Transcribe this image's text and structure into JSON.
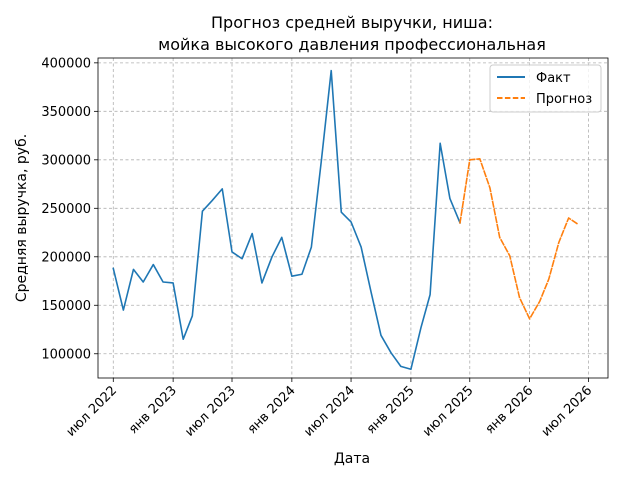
{
  "chart_data": {
    "type": "line",
    "title_line1": "Прогноз средней выручки, ниша:",
    "title_line2": "мойка высокого давления профессиональная",
    "xlabel": "Дата",
    "ylabel": "Средняя выручка, руб.",
    "grid": true,
    "legend_placement": "top-right",
    "xlim": [
      "2022-05-15",
      "2026-08-30"
    ],
    "ylim": [
      75000,
      405000
    ],
    "yticks": [
      100000,
      150000,
      200000,
      250000,
      300000,
      350000,
      400000
    ],
    "xticks": [
      {
        "date": "2022-07-01",
        "label": "июл 2022"
      },
      {
        "date": "2023-01-01",
        "label": "янв 2023"
      },
      {
        "date": "2023-07-01",
        "label": "июл 2023"
      },
      {
        "date": "2024-01-01",
        "label": "янв 2024"
      },
      {
        "date": "2024-07-01",
        "label": "июл 2024"
      },
      {
        "date": "2025-01-01",
        "label": "янв 2025"
      },
      {
        "date": "2025-07-01",
        "label": "июл 2025"
      },
      {
        "date": "2026-01-01",
        "label": "янв 2026"
      },
      {
        "date": "2026-07-01",
        "label": "июл 2026"
      }
    ],
    "series": [
      {
        "name": "Факт",
        "color": "#1f77b4",
        "style": "solid",
        "points": [
          [
            "2022-07-01",
            188000
          ],
          [
            "2022-08-01",
            145000
          ],
          [
            "2022-09-01",
            187000
          ],
          [
            "2022-10-01",
            174000
          ],
          [
            "2022-11-01",
            192000
          ],
          [
            "2022-12-01",
            174000
          ],
          [
            "2023-01-01",
            173000
          ],
          [
            "2023-02-01",
            115000
          ],
          [
            "2023-03-01",
            139000
          ],
          [
            "2023-04-01",
            247000
          ],
          [
            "2023-05-01",
            258000
          ],
          [
            "2023-06-01",
            270000
          ],
          [
            "2023-07-01",
            205000
          ],
          [
            "2023-08-01",
            198000
          ],
          [
            "2023-09-01",
            224000
          ],
          [
            "2023-10-01",
            173000
          ],
          [
            "2023-11-01",
            200000
          ],
          [
            "2023-12-01",
            220000
          ],
          [
            "2024-01-01",
            180000
          ],
          [
            "2024-02-01",
            182000
          ],
          [
            "2024-03-01",
            210000
          ],
          [
            "2024-04-01",
            300000
          ],
          [
            "2024-05-01",
            392000
          ],
          [
            "2024-06-01",
            246000
          ],
          [
            "2024-07-01",
            236000
          ],
          [
            "2024-08-01",
            210000
          ],
          [
            "2024-09-01",
            163000
          ],
          [
            "2024-10-01",
            119000
          ],
          [
            "2024-11-01",
            101000
          ],
          [
            "2024-12-01",
            87000
          ],
          [
            "2025-01-01",
            84000
          ],
          [
            "2025-02-01",
            127000
          ],
          [
            "2025-03-01",
            161000
          ],
          [
            "2025-04-01",
            317000
          ],
          [
            "2025-05-01",
            260000
          ],
          [
            "2025-06-01",
            235000
          ]
        ]
      },
      {
        "name": "Прогноз",
        "color": "#ff7f0e",
        "style": "dashed",
        "points": [
          [
            "2025-06-01",
            235000
          ],
          [
            "2025-07-01",
            300000
          ],
          [
            "2025-08-01",
            301000
          ],
          [
            "2025-09-01",
            271000
          ],
          [
            "2025-10-01",
            220000
          ],
          [
            "2025-11-01",
            201000
          ],
          [
            "2025-12-01",
            158000
          ],
          [
            "2026-01-01",
            136000
          ],
          [
            "2026-02-01",
            154000
          ],
          [
            "2026-03-01",
            177000
          ],
          [
            "2026-04-01",
            215000
          ],
          [
            "2026-05-01",
            240000
          ],
          [
            "2026-06-01",
            233000
          ]
        ]
      }
    ]
  }
}
